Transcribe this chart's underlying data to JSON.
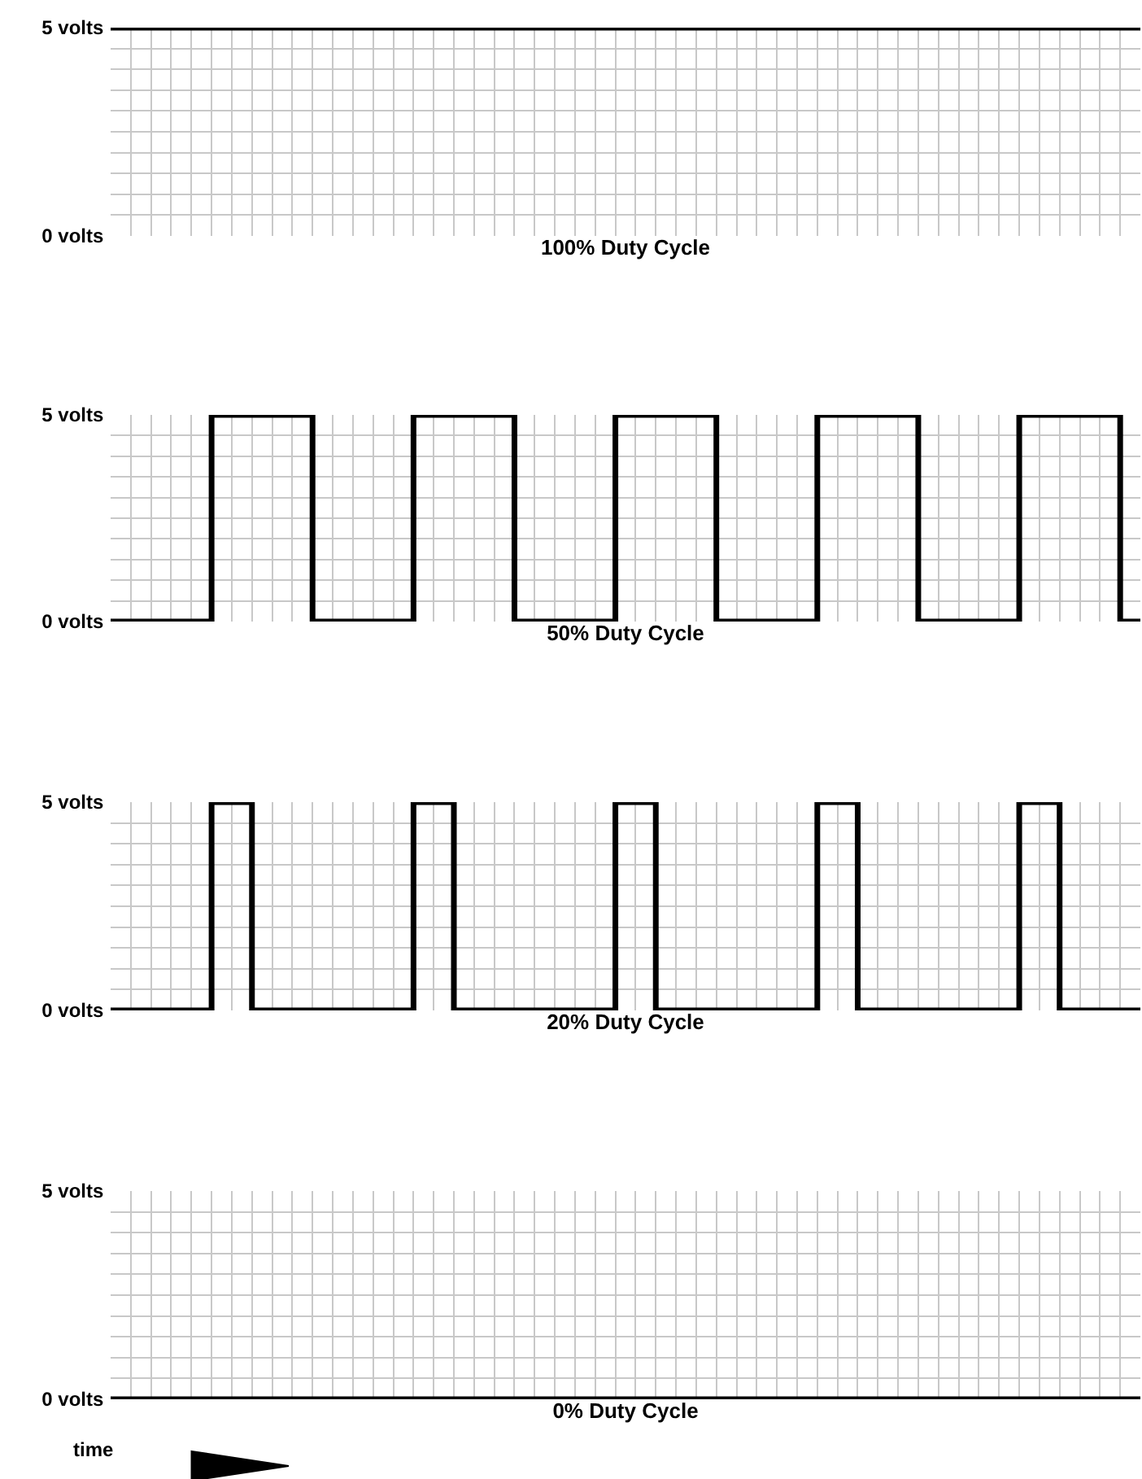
{
  "chart_data": [
    {
      "type": "step",
      "categories": [
        null,
        null,
        null,
        null,
        null,
        null,
        null,
        null,
        null,
        null,
        null,
        null,
        null,
        null,
        null,
        null,
        null,
        null,
        null,
        null,
        null,
        null,
        null,
        null,
        null,
        null,
        null,
        null,
        null,
        null,
        null,
        null,
        null,
        null,
        null,
        null,
        null,
        null,
        null,
        null,
        null,
        null,
        null,
        null,
        null,
        null,
        null,
        null,
        null,
        null,
        null,
        null
      ],
      "series": [
        {
          "color": "#000000",
          "values": [
            5,
            5,
            5,
            5,
            5,
            5,
            5,
            5,
            5,
            5,
            5,
            5,
            5,
            5,
            5,
            5,
            5,
            5,
            5,
            5,
            5,
            5,
            5,
            5,
            5,
            5,
            5,
            5,
            5,
            5,
            5,
            5,
            5,
            5,
            5,
            5,
            5,
            5,
            5,
            5,
            5,
            5,
            5,
            5,
            5,
            5,
            5,
            5,
            5,
            5,
            5,
            5
          ]
        }
      ],
      "ylim": [
        0,
        5
      ],
      "yticks": [
        {
          "value": 0,
          "label": "0 volts"
        },
        {
          "value": 0.5,
          "label": null
        },
        {
          "value": 1,
          "label": null
        },
        {
          "value": 1.5,
          "label": null
        },
        {
          "value": 2,
          "label": null
        },
        {
          "value": 2.5,
          "label": null
        },
        {
          "value": 3,
          "label": null
        },
        {
          "value": 3.5,
          "label": null
        },
        {
          "value": 4,
          "label": null
        },
        {
          "value": 4.5,
          "label": null
        },
        {
          "value": 5,
          "label": "5 volts"
        }
      ],
      "grid": true,
      "tick_labels": "y",
      "xlabel": "100% Duty Cycle"
    },
    {
      "type": "step",
      "categories": [
        null,
        null,
        null,
        null,
        null,
        null,
        null,
        null,
        null,
        null,
        null,
        null,
        null,
        null,
        null,
        null,
        null,
        null,
        null,
        null,
        null,
        null,
        null,
        null,
        null,
        null,
        null,
        null,
        null,
        null,
        null,
        null,
        null,
        null,
        null,
        null,
        null,
        null,
        null,
        null,
        null,
        null,
        null,
        null,
        null,
        null,
        null,
        null,
        null,
        null,
        null,
        null
      ],
      "series": [
        {
          "color": "#000000",
          "values": [
            0,
            0,
            0,
            0,
            0,
            5,
            5,
            5,
            5,
            5,
            0,
            0,
            0,
            0,
            0,
            5,
            5,
            5,
            5,
            5,
            0,
            0,
            0,
            0,
            0,
            5,
            5,
            5,
            5,
            5,
            0,
            0,
            0,
            0,
            0,
            5,
            5,
            5,
            5,
            5,
            0,
            0,
            0,
            0,
            0,
            5,
            5,
            5,
            5,
            5,
            0,
            0
          ]
        }
      ],
      "ylim": [
        0,
        5
      ],
      "yticks": [
        {
          "value": 0,
          "label": "0 volts"
        },
        {
          "value": 0.5,
          "label": null
        },
        {
          "value": 1,
          "label": null
        },
        {
          "value": 1.5,
          "label": null
        },
        {
          "value": 2,
          "label": null
        },
        {
          "value": 2.5,
          "label": null
        },
        {
          "value": 3,
          "label": null
        },
        {
          "value": 3.5,
          "label": null
        },
        {
          "value": 4,
          "label": null
        },
        {
          "value": 4.5,
          "label": null
        },
        {
          "value": 5,
          "label": "5 volts"
        }
      ],
      "grid": true,
      "tick_labels": "y",
      "xlabel": "50% Duty Cycle"
    },
    {
      "type": "step",
      "categories": [
        null,
        null,
        null,
        null,
        null,
        null,
        null,
        null,
        null,
        null,
        null,
        null,
        null,
        null,
        null,
        null,
        null,
        null,
        null,
        null,
        null,
        null,
        null,
        null,
        null,
        null,
        null,
        null,
        null,
        null,
        null,
        null,
        null,
        null,
        null,
        null,
        null,
        null,
        null,
        null,
        null,
        null,
        null,
        null,
        null,
        null,
        null,
        null,
        null,
        null,
        null,
        null
      ],
      "series": [
        {
          "color": "#000000",
          "values": [
            0,
            0,
            0,
            0,
            0,
            5,
            5,
            0,
            0,
            0,
            0,
            0,
            0,
            0,
            0,
            5,
            5,
            0,
            0,
            0,
            0,
            0,
            0,
            0,
            0,
            5,
            5,
            0,
            0,
            0,
            0,
            0,
            0,
            0,
            0,
            5,
            5,
            0,
            0,
            0,
            0,
            0,
            0,
            0,
            0,
            5,
            5,
            0,
            0,
            0,
            0,
            0
          ]
        }
      ],
      "ylim": [
        0,
        5
      ],
      "yticks": [
        {
          "value": 0,
          "label": "0 volts"
        },
        {
          "value": 0.5,
          "label": null
        },
        {
          "value": 1,
          "label": null
        },
        {
          "value": 1.5,
          "label": null
        },
        {
          "value": 2,
          "label": null
        },
        {
          "value": 2.5,
          "label": null
        },
        {
          "value": 3,
          "label": null
        },
        {
          "value": 3.5,
          "label": null
        },
        {
          "value": 4,
          "label": null
        },
        {
          "value": 4.5,
          "label": null
        },
        {
          "value": 5,
          "label": "5 volts"
        }
      ],
      "grid": true,
      "tick_labels": "y",
      "xlabel": "20% Duty Cycle"
    },
    {
      "type": "step",
      "categories": [
        null,
        null,
        null,
        null,
        null,
        null,
        null,
        null,
        null,
        null,
        null,
        null,
        null,
        null,
        null,
        null,
        null,
        null,
        null,
        null,
        null,
        null,
        null,
        null,
        null,
        null,
        null,
        null,
        null,
        null,
        null,
        null,
        null,
        null,
        null,
        null,
        null,
        null,
        null,
        null,
        null,
        null,
        null,
        null,
        null,
        null,
        null,
        null,
        null,
        null,
        null,
        null
      ],
      "series": [
        {
          "color": "#000000",
          "values": [
            0,
            0,
            0,
            0,
            0,
            0,
            0,
            0,
            0,
            0,
            0,
            0,
            0,
            0,
            0,
            0,
            0,
            0,
            0,
            0,
            0,
            0,
            0,
            0,
            0,
            0,
            0,
            0,
            0,
            0,
            0,
            0,
            0,
            0,
            0,
            0,
            0,
            0,
            0,
            0,
            0,
            0,
            0,
            0,
            0,
            0,
            0,
            0,
            0,
            0,
            0,
            0
          ]
        }
      ],
      "ylim": [
        0,
        5
      ],
      "yticks": [
        {
          "value": 0,
          "label": "0 volts"
        },
        {
          "value": 0.5,
          "label": null
        },
        {
          "value": 1,
          "label": null
        },
        {
          "value": 1.5,
          "label": null
        },
        {
          "value": 2,
          "label": null
        },
        {
          "value": 2.5,
          "label": null
        },
        {
          "value": 3,
          "label": null
        },
        {
          "value": 3.5,
          "label": null
        },
        {
          "value": 4,
          "label": null
        },
        {
          "value": 4.5,
          "label": null
        },
        {
          "value": 5,
          "label": "5 volts"
        }
      ],
      "grid": true,
      "tick_labels": "y",
      "xlabel": "0% Duty Cycle",
      "annotations": [
        "time"
      ]
    }
  ]
}
